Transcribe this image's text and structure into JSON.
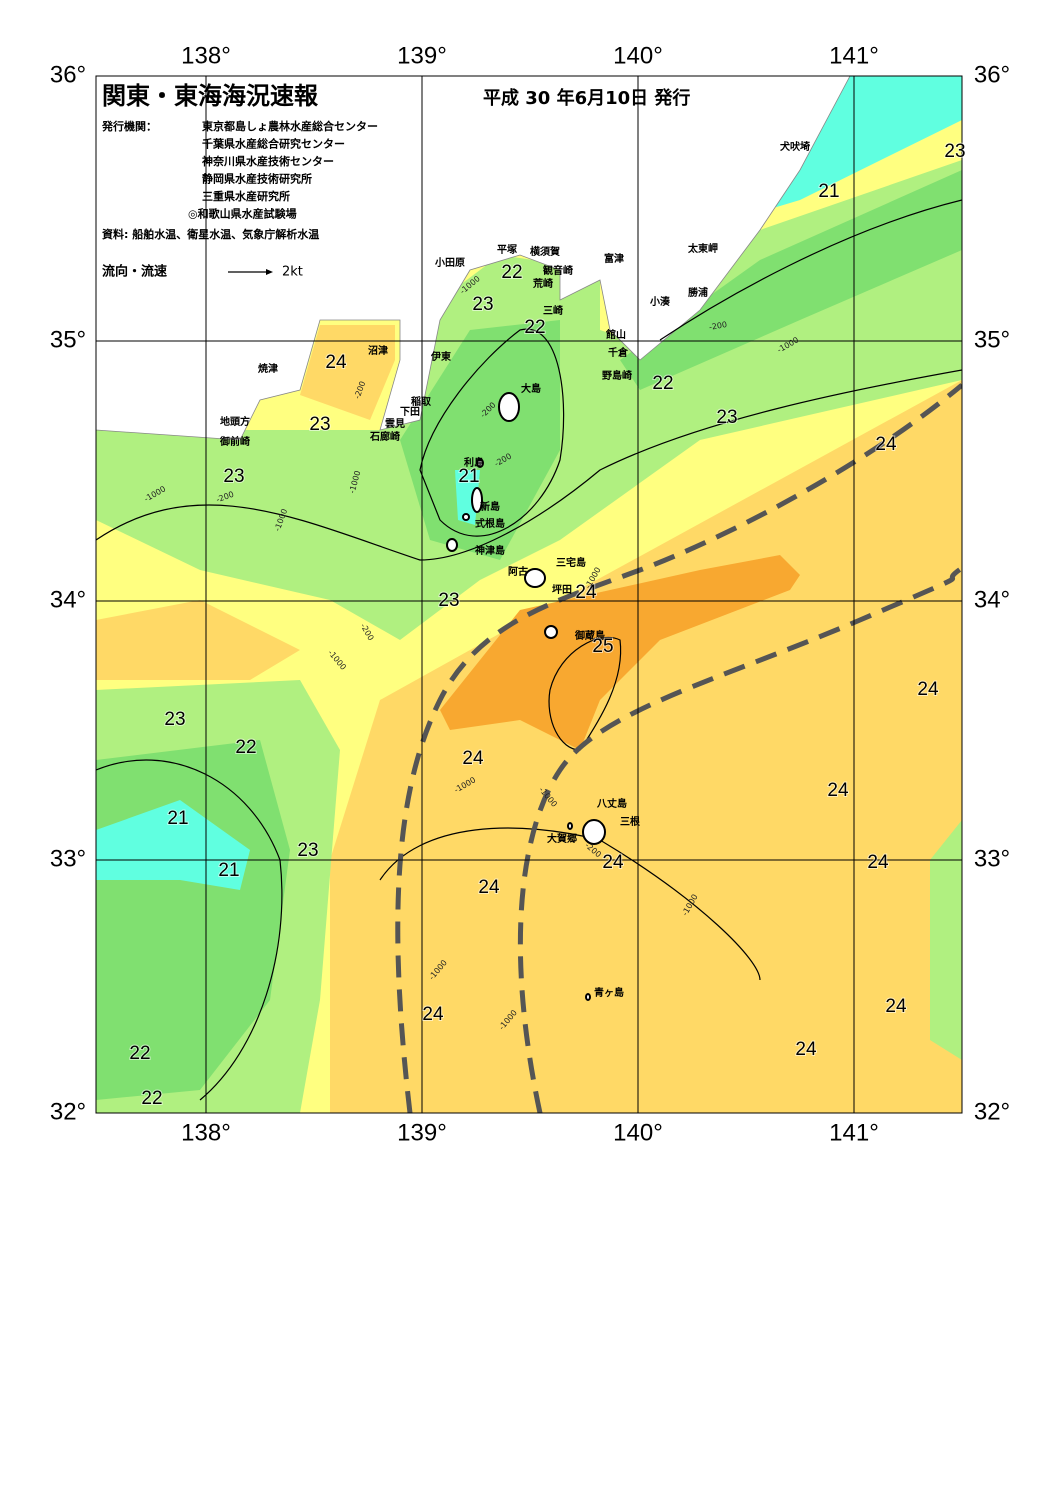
{
  "header": {
    "title": "関東・東海海況速報",
    "date": "平成 30 年6月10日 発行"
  },
  "publishers": {
    "label": "発行機関：",
    "names": [
      "東京都島しょ農林水産総合センター",
      "千葉県水産総合研究センター",
      "神奈川県水産技術センター",
      "静岡県水産技術研究所",
      "三重県水産研究所",
      "◎和歌山県水産試験場"
    ]
  },
  "source": "資料: 船舶水温、衛星水温、気象庁解析水温",
  "legend": {
    "label": "流向・流速",
    "speed": "2kt"
  },
  "axes": {
    "longitudes": [
      "138°",
      "139°",
      "140°",
      "141°"
    ],
    "latitudes": [
      "36°",
      "35°",
      "34°",
      "33°",
      "32°"
    ]
  },
  "places": [
    "犬吠埼",
    "太東岬",
    "勝浦",
    "小湊",
    "富津",
    "横須賀",
    "平塚",
    "観音崎",
    "荒崎",
    "小田原",
    "三崎",
    "館山",
    "千倉",
    "野島崎",
    "沼津",
    "伊東",
    "焼津",
    "大島",
    "稲取",
    "下田",
    "雲見",
    "石廊崎",
    "地頭方",
    "御前崎",
    "利島",
    "新島",
    "式根島",
    "神津島",
    "三宅島",
    "阿古",
    "坪田",
    "御蔵島",
    "八丈島",
    "三根",
    "大賀郷",
    "青ヶ島"
  ],
  "temperature_labels": [
    "22",
    "23",
    "22",
    "24",
    "23",
    "21",
    "23",
    "22",
    "23",
    "24",
    "21",
    "23",
    "24",
    "23",
    "25",
    "24",
    "23",
    "22",
    "24",
    "24",
    "21",
    "23",
    "21",
    "24",
    "24",
    "24",
    "24",
    "24",
    "24",
    "22",
    "22"
  ],
  "depth_labels": [
    "-1000",
    "-200",
    "-1000",
    "-200",
    "-200",
    "-200",
    "-1000",
    "-1000",
    "-200",
    "-1000",
    "-200",
    "-1000",
    "-1000",
    "-1000",
    "-1000",
    "-200",
    "-1000",
    "-1000",
    "-1000"
  ]
}
